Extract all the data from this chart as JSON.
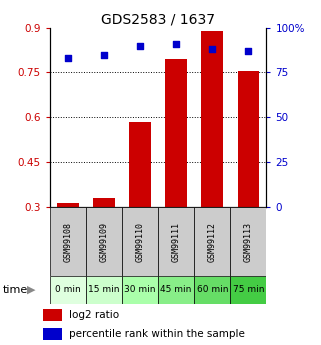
{
  "title": "GDS2583 / 1637",
  "samples": [
    "GSM99108",
    "GSM99109",
    "GSM99110",
    "GSM99111",
    "GSM99112",
    "GSM99113"
  ],
  "time_labels": [
    "0 min",
    "15 min",
    "30 min",
    "45 min",
    "60 min",
    "75 min"
  ],
  "time_colors": [
    "#dfffdf",
    "#ccffcc",
    "#aaffaa",
    "#88ee88",
    "#66dd66",
    "#44cc44"
  ],
  "log2_ratio": [
    0.315,
    0.33,
    0.585,
    0.795,
    0.89,
    0.755
  ],
  "log2_baseline": 0.3,
  "percentile_rank": [
    83,
    85,
    90,
    91,
    88,
    87
  ],
  "left_ylim": [
    0.3,
    0.9
  ],
  "left_yticks": [
    0.3,
    0.45,
    0.6,
    0.75,
    0.9
  ],
  "right_ylim": [
    0,
    100
  ],
  "right_yticks": [
    0,
    25,
    50,
    75,
    100
  ],
  "right_yticklabels": [
    "0",
    "25",
    "50",
    "75",
    "100%"
  ],
  "bar_color": "#cc0000",
  "dot_color": "#0000cc",
  "left_tick_color": "#cc0000",
  "right_tick_color": "#0000cc",
  "sample_box_color": "#cccccc",
  "bg_color": "#ffffff",
  "legend_log2": "log2 ratio",
  "legend_pct": "percentile rank within the sample",
  "time_label": "time"
}
